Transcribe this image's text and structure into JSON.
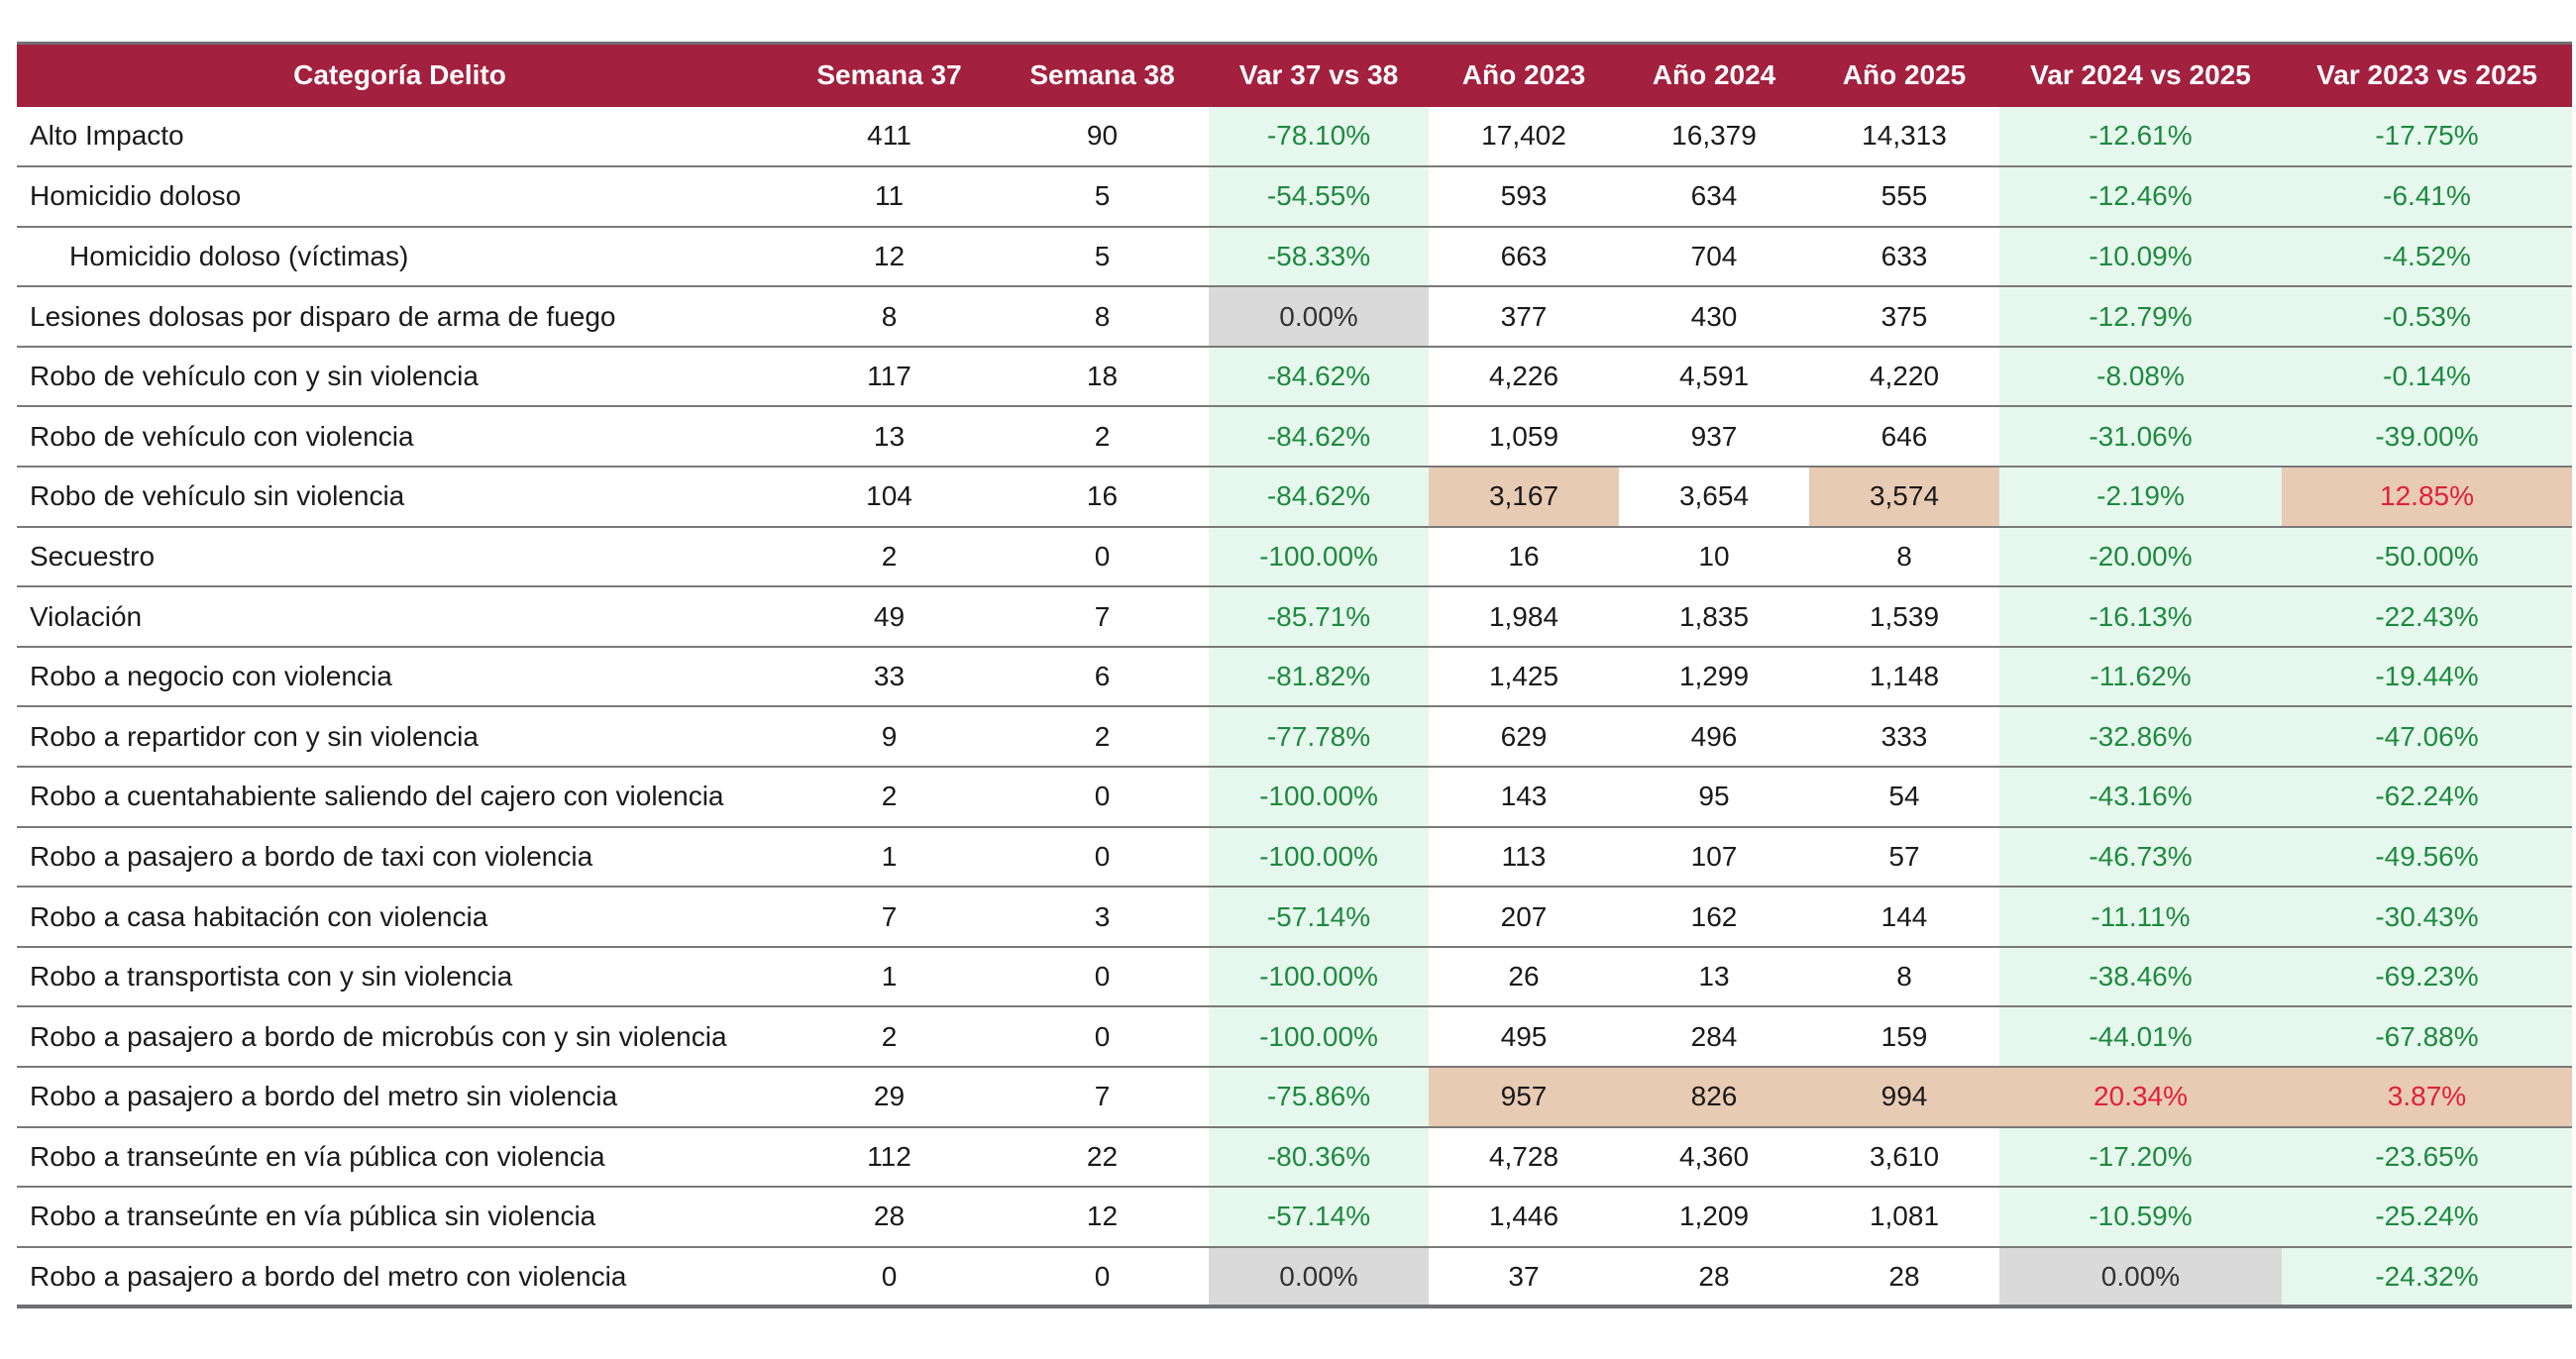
{
  "colors": {
    "header_bg": "#a3203f",
    "decrease_text": "#1e8a3e",
    "increase_text": "#e0203a",
    "decrease_bg": "#e6f8ee",
    "neutral_bg": "#dadada",
    "highlight_bg": "#e8cbb3"
  },
  "chart_data": {
    "type": "table",
    "columns": [
      "Categoría Delito",
      "Semana 37",
      "Semana 38",
      "Var 37 vs 38",
      "Año 2023",
      "Año 2024",
      "Año 2025",
      "Var 2024 vs 2025",
      "Var 2023 vs 2025"
    ],
    "rows": [
      {
        "cells": [
          "Alto Impacto",
          "411",
          "90",
          "-78.10%",
          "17,402",
          "16,379",
          "14,313",
          "-12.61%",
          "-17.75%"
        ],
        "indent": false,
        "text": [
          "",
          "",
          "",
          "neg",
          "",
          "",
          "",
          "neg",
          "neg"
        ],
        "bg": [
          "",
          "",
          "",
          "green",
          "",
          "",
          "",
          "green",
          "green"
        ]
      },
      {
        "cells": [
          "Homicidio doloso",
          "11",
          "5",
          "-54.55%",
          "593",
          "634",
          "555",
          "-12.46%",
          "-6.41%"
        ],
        "indent": false,
        "text": [
          "",
          "",
          "",
          "neg",
          "",
          "",
          "",
          "neg",
          "neg"
        ],
        "bg": [
          "",
          "",
          "",
          "green",
          "",
          "",
          "",
          "green",
          "green"
        ]
      },
      {
        "cells": [
          "Homicidio doloso (víctimas)",
          "12",
          "5",
          "-58.33%",
          "663",
          "704",
          "633",
          "-10.09%",
          "-4.52%"
        ],
        "indent": true,
        "text": [
          "",
          "",
          "",
          "neg",
          "",
          "",
          "",
          "neg",
          "neg"
        ],
        "bg": [
          "",
          "",
          "",
          "green",
          "",
          "",
          "",
          "green",
          "green"
        ]
      },
      {
        "cells": [
          "Lesiones dolosas por disparo de arma de fuego",
          "8",
          "8",
          "0.00%",
          "377",
          "430",
          "375",
          "-12.79%",
          "-0.53%"
        ],
        "indent": false,
        "text": [
          "",
          "",
          "",
          "zero",
          "",
          "",
          "",
          "neg",
          "neg"
        ],
        "bg": [
          "",
          "",
          "",
          "gray",
          "",
          "",
          "",
          "green",
          "green"
        ]
      },
      {
        "cells": [
          "Robo de vehículo con y sin violencia",
          "117",
          "18",
          "-84.62%",
          "4,226",
          "4,591",
          "4,220",
          "-8.08%",
          "-0.14%"
        ],
        "indent": false,
        "text": [
          "",
          "",
          "",
          "neg",
          "",
          "",
          "",
          "neg",
          "neg"
        ],
        "bg": [
          "",
          "",
          "",
          "green",
          "",
          "",
          "",
          "green",
          "green"
        ]
      },
      {
        "cells": [
          "Robo de vehículo con violencia",
          "13",
          "2",
          "-84.62%",
          "1,059",
          "937",
          "646",
          "-31.06%",
          "-39.00%"
        ],
        "indent": false,
        "text": [
          "",
          "",
          "",
          "neg",
          "",
          "",
          "",
          "neg",
          "neg"
        ],
        "bg": [
          "",
          "",
          "",
          "green",
          "",
          "",
          "",
          "green",
          "green"
        ]
      },
      {
        "cells": [
          "Robo de vehículo sin violencia",
          "104",
          "16",
          "-84.62%",
          "3,167",
          "3,654",
          "3,574",
          "-2.19%",
          "12.85%"
        ],
        "indent": false,
        "text": [
          "",
          "",
          "",
          "neg",
          "",
          "",
          "",
          "neg",
          "pos"
        ],
        "bg": [
          "",
          "",
          "",
          "green",
          "tan",
          "",
          "tan",
          "green",
          "tan"
        ]
      },
      {
        "cells": [
          "Secuestro",
          "2",
          "0",
          "-100.00%",
          "16",
          "10",
          "8",
          "-20.00%",
          "-50.00%"
        ],
        "indent": false,
        "text": [
          "",
          "",
          "",
          "neg",
          "",
          "",
          "",
          "neg",
          "neg"
        ],
        "bg": [
          "",
          "",
          "",
          "green",
          "",
          "",
          "",
          "green",
          "green"
        ]
      },
      {
        "cells": [
          "Violación",
          "49",
          "7",
          "-85.71%",
          "1,984",
          "1,835",
          "1,539",
          "-16.13%",
          "-22.43%"
        ],
        "indent": false,
        "text": [
          "",
          "",
          "",
          "neg",
          "",
          "",
          "",
          "neg",
          "neg"
        ],
        "bg": [
          "",
          "",
          "",
          "green",
          "",
          "",
          "",
          "green",
          "green"
        ]
      },
      {
        "cells": [
          "Robo a negocio con violencia",
          "33",
          "6",
          "-81.82%",
          "1,425",
          "1,299",
          "1,148",
          "-11.62%",
          "-19.44%"
        ],
        "indent": false,
        "text": [
          "",
          "",
          "",
          "neg",
          "",
          "",
          "",
          "neg",
          "neg"
        ],
        "bg": [
          "",
          "",
          "",
          "green",
          "",
          "",
          "",
          "green",
          "green"
        ]
      },
      {
        "cells": [
          "Robo a repartidor con y sin violencia",
          "9",
          "2",
          "-77.78%",
          "629",
          "496",
          "333",
          "-32.86%",
          "-47.06%"
        ],
        "indent": false,
        "text": [
          "",
          "",
          "",
          "neg",
          "",
          "",
          "",
          "neg",
          "neg"
        ],
        "bg": [
          "",
          "",
          "",
          "green",
          "",
          "",
          "",
          "green",
          "green"
        ]
      },
      {
        "cells": [
          "Robo a cuentahabiente saliendo del cajero con violencia",
          "2",
          "0",
          "-100.00%",
          "143",
          "95",
          "54",
          "-43.16%",
          "-62.24%"
        ],
        "indent": false,
        "text": [
          "",
          "",
          "",
          "neg",
          "",
          "",
          "",
          "neg",
          "neg"
        ],
        "bg": [
          "",
          "",
          "",
          "green",
          "",
          "",
          "",
          "green",
          "green"
        ]
      },
      {
        "cells": [
          "Robo a pasajero a bordo de taxi con violencia",
          "1",
          "0",
          "-100.00%",
          "113",
          "107",
          "57",
          "-46.73%",
          "-49.56%"
        ],
        "indent": false,
        "text": [
          "",
          "",
          "",
          "neg",
          "",
          "",
          "",
          "neg",
          "neg"
        ],
        "bg": [
          "",
          "",
          "",
          "green",
          "",
          "",
          "",
          "green",
          "green"
        ]
      },
      {
        "cells": [
          "Robo a casa habitación con violencia",
          "7",
          "3",
          "-57.14%",
          "207",
          "162",
          "144",
          "-11.11%",
          "-30.43%"
        ],
        "indent": false,
        "text": [
          "",
          "",
          "",
          "neg",
          "",
          "",
          "",
          "neg",
          "neg"
        ],
        "bg": [
          "",
          "",
          "",
          "green",
          "",
          "",
          "",
          "green",
          "green"
        ]
      },
      {
        "cells": [
          "Robo a transportista con y sin violencia",
          "1",
          "0",
          "-100.00%",
          "26",
          "13",
          "8",
          "-38.46%",
          "-69.23%"
        ],
        "indent": false,
        "text": [
          "",
          "",
          "",
          "neg",
          "",
          "",
          "",
          "neg",
          "neg"
        ],
        "bg": [
          "",
          "",
          "",
          "green",
          "",
          "",
          "",
          "green",
          "green"
        ]
      },
      {
        "cells": [
          "Robo a pasajero a bordo de microbús con y sin violencia",
          "2",
          "0",
          "-100.00%",
          "495",
          "284",
          "159",
          "-44.01%",
          "-67.88%"
        ],
        "indent": false,
        "text": [
          "",
          "",
          "",
          "neg",
          "",
          "",
          "",
          "neg",
          "neg"
        ],
        "bg": [
          "",
          "",
          "",
          "green",
          "",
          "",
          "",
          "green",
          "green"
        ]
      },
      {
        "cells": [
          "Robo a pasajero a bordo del metro sin violencia",
          "29",
          "7",
          "-75.86%",
          "957",
          "826",
          "994",
          "20.34%",
          "3.87%"
        ],
        "indent": false,
        "text": [
          "",
          "",
          "",
          "neg",
          "",
          "",
          "",
          "pos",
          "pos"
        ],
        "bg": [
          "",
          "",
          "",
          "green",
          "tan",
          "tan",
          "tan",
          "tan",
          "tan"
        ]
      },
      {
        "cells": [
          "Robo a transeúnte en vía pública con violencia",
          "112",
          "22",
          "-80.36%",
          "4,728",
          "4,360",
          "3,610",
          "-17.20%",
          "-23.65%"
        ],
        "indent": false,
        "text": [
          "",
          "",
          "",
          "neg",
          "",
          "",
          "",
          "neg",
          "neg"
        ],
        "bg": [
          "",
          "",
          "",
          "green",
          "",
          "",
          "",
          "green",
          "green"
        ]
      },
      {
        "cells": [
          "Robo a transeúnte en vía pública sin violencia",
          "28",
          "12",
          "-57.14%",
          "1,446",
          "1,209",
          "1,081",
          "-10.59%",
          "-25.24%"
        ],
        "indent": false,
        "text": [
          "",
          "",
          "",
          "neg",
          "",
          "",
          "",
          "neg",
          "neg"
        ],
        "bg": [
          "",
          "",
          "",
          "green",
          "",
          "",
          "",
          "green",
          "green"
        ]
      },
      {
        "cells": [
          "Robo a pasajero a bordo del metro con violencia",
          "0",
          "0",
          "0.00%",
          "37",
          "28",
          "28",
          "0.00%",
          "-24.32%"
        ],
        "indent": false,
        "text": [
          "",
          "",
          "",
          "zero",
          "",
          "",
          "",
          "zero",
          "neg"
        ],
        "bg": [
          "",
          "",
          "",
          "gray",
          "",
          "",
          "",
          "gray",
          "green"
        ]
      }
    ]
  }
}
